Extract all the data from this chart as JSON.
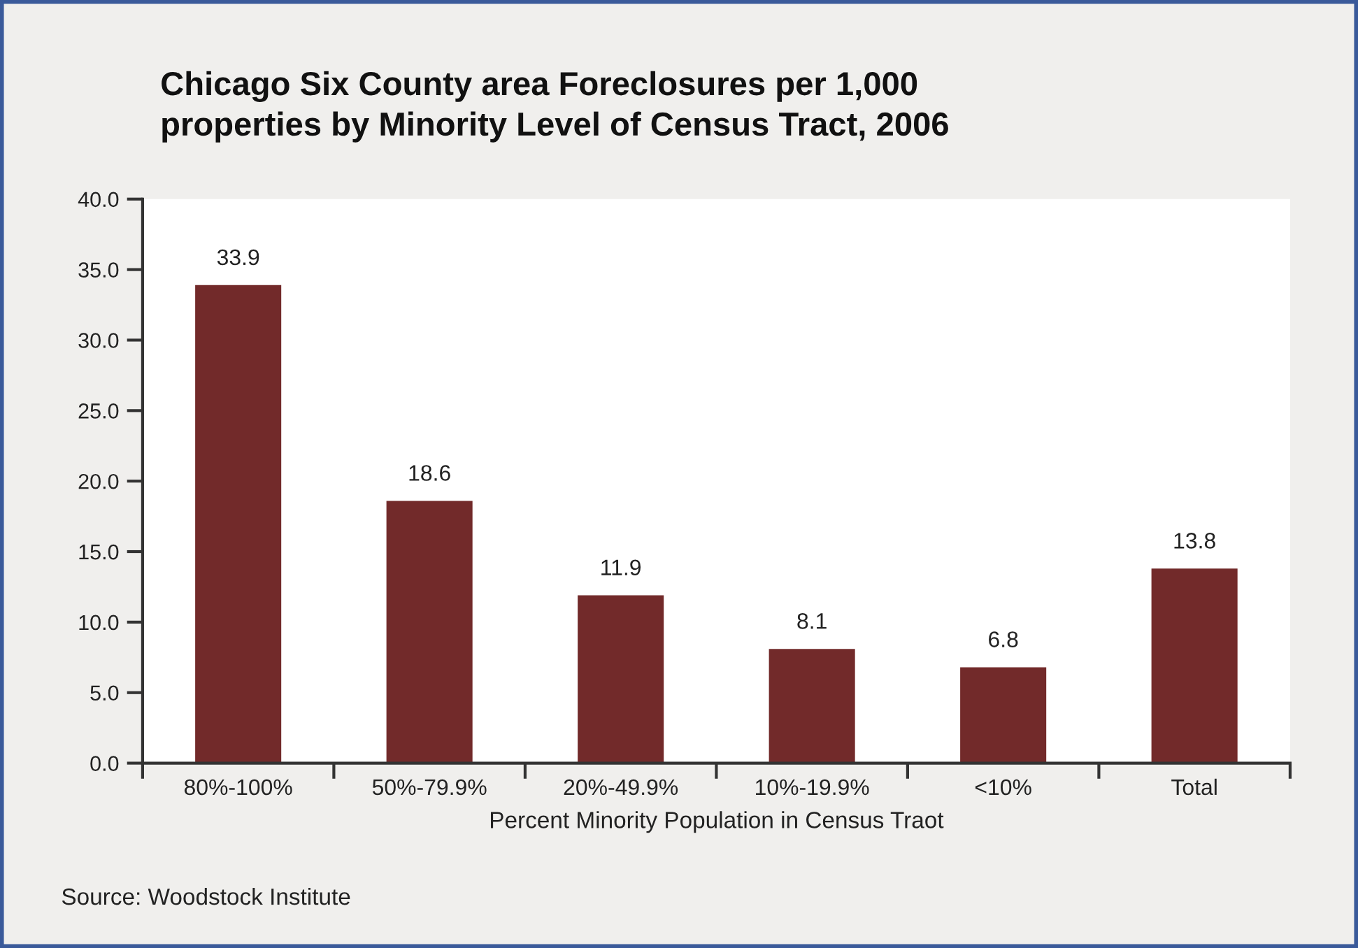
{
  "chart_data": {
    "type": "bar",
    "title": "Chicago Six County area Foreclosures per 1,000\nproperties by Minority Level of Census Tract, 2006",
    "xlabel": "Percent Minority Population in Census Traot",
    "categories": [
      "80%-100%",
      "50%-79.9%",
      "20%-49.9%",
      "10%-19.9%",
      "<10%",
      "Total"
    ],
    "values": [
      33.9,
      18.6,
      11.9,
      8.1,
      6.8,
      13.8
    ],
    "color": "#722a2a",
    "ylim": [
      0,
      40
    ],
    "yticks": [
      {
        "value": 0,
        "label": "0.0"
      },
      {
        "value": 5,
        "label": "5.0"
      },
      {
        "value": 10,
        "label": "10.0"
      },
      {
        "value": 15,
        "label": "15.0"
      },
      {
        "value": 20,
        "label": "20.0"
      },
      {
        "value": 25,
        "label": "25.0"
      },
      {
        "value": 30,
        "label": "30.0"
      },
      {
        "value": 35,
        "label": "35.0"
      },
      {
        "value": 40,
        "label": "40.0"
      }
    ],
    "data_labels": true,
    "grid": false,
    "annotations": [
      "Source: Woodstock Institute"
    ]
  }
}
